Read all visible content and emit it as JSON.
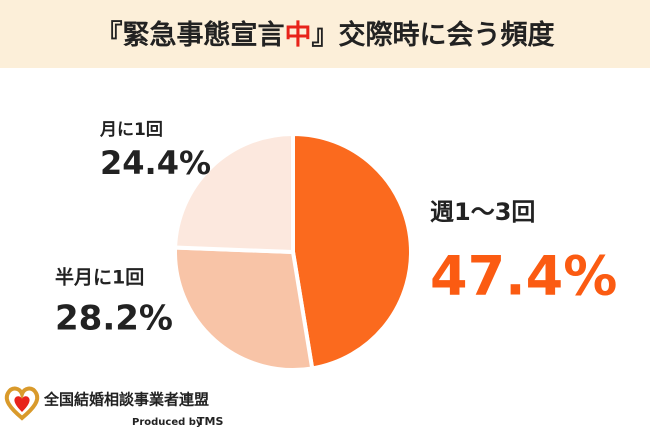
{
  "chart_data": {
    "type": "pie",
    "title": [
      "『緊急事態宣言",
      "中",
      "』交際時に会う頻度"
    ],
    "categories": [
      "週1〜3回",
      "半月に1回",
      "月に1回"
    ],
    "values": [
      47.4,
      28.2,
      24.4
    ],
    "value_labels": [
      "47.4%",
      "28.2%",
      "24.4%"
    ],
    "colors": [
      "#fb6a1e",
      "#f8c4a7",
      "#fce8de"
    ]
  },
  "footer": {
    "organization": "全国結婚相談事業者連盟",
    "produced_by": "Produced by",
    "brand": "TMS"
  }
}
